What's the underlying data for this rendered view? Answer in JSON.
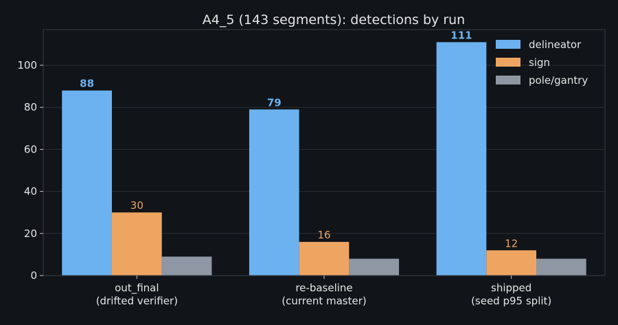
{
  "chart_data": {
    "type": "bar",
    "title": "A4_5 (143 segments): detections by run",
    "categories": [
      [
        "out_final",
        "(drifted verifier)"
      ],
      [
        "re-baseline",
        "(current master)"
      ],
      [
        "shipped",
        "(seed p95 split)"
      ]
    ],
    "series": [
      {
        "name": "delineator",
        "values": [
          88,
          79,
          111
        ],
        "color": "#6cb2f0",
        "labels": [
          "88",
          "79",
          "111"
        ],
        "label_bold": true
      },
      {
        "name": "sign",
        "values": [
          30,
          16,
          12
        ],
        "color": "#eea562",
        "labels": [
          "30",
          "16",
          "12"
        ],
        "label_bold": false
      },
      {
        "name": "pole/gantry",
        "values": [
          9,
          8,
          8
        ],
        "color": "#8e97a3",
        "labels": [],
        "label_bold": false
      }
    ],
    "yticks": [
      "0",
      "20",
      "40",
      "60",
      "80",
      "100"
    ],
    "ylim": [
      0,
      117
    ],
    "grid": true,
    "legend_position": "top-right",
    "colors": {
      "background": "#111418",
      "text": "#e6e6e6",
      "grid": "#2a2f36"
    }
  }
}
